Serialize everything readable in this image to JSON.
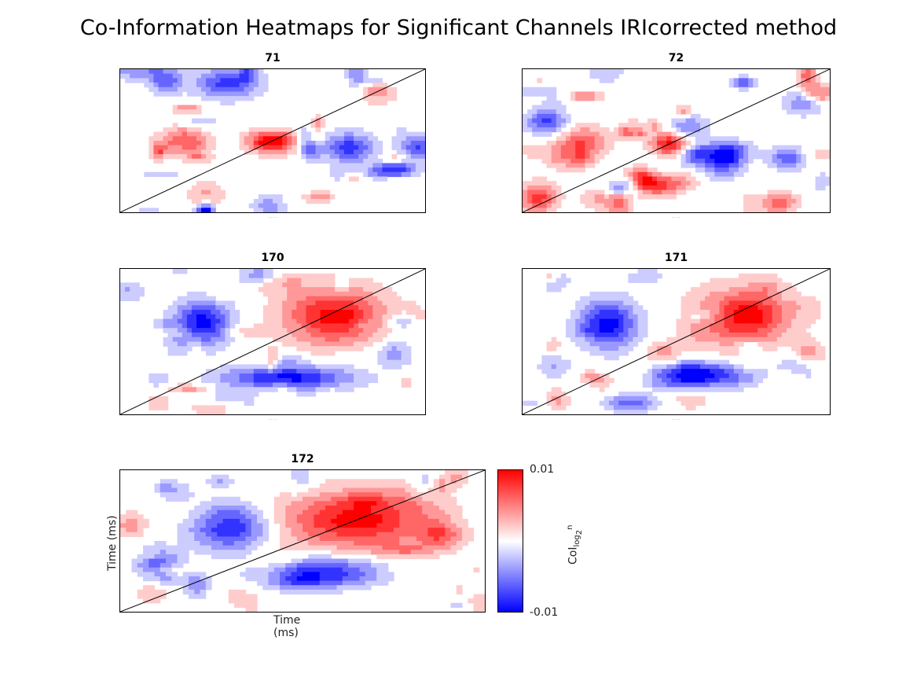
{
  "title": "Co-Information Heatmaps for Significant Channels IRIcorrected method",
  "chart_data": {
    "type": "heatmap",
    "panels": [
      {
        "name": "71"
      },
      {
        "name": "72"
      },
      {
        "name": "170"
      },
      {
        "name": "171"
      },
      {
        "name": "172",
        "xlabel": "Time (ms)",
        "ylabel": "Time (ms)"
      }
    ],
    "colorbar": {
      "max_label": "0.01",
      "min_label": "-0.01",
      "label_base": "CoI",
      "label_sub": "log",
      "label_sub2": "2",
      "label_sup": "n",
      "colors": [
        "#0000ff",
        "#ffffff",
        "#ff0000"
      ],
      "range": [
        -0.01,
        0.01
      ]
    },
    "diagonal": true
  }
}
